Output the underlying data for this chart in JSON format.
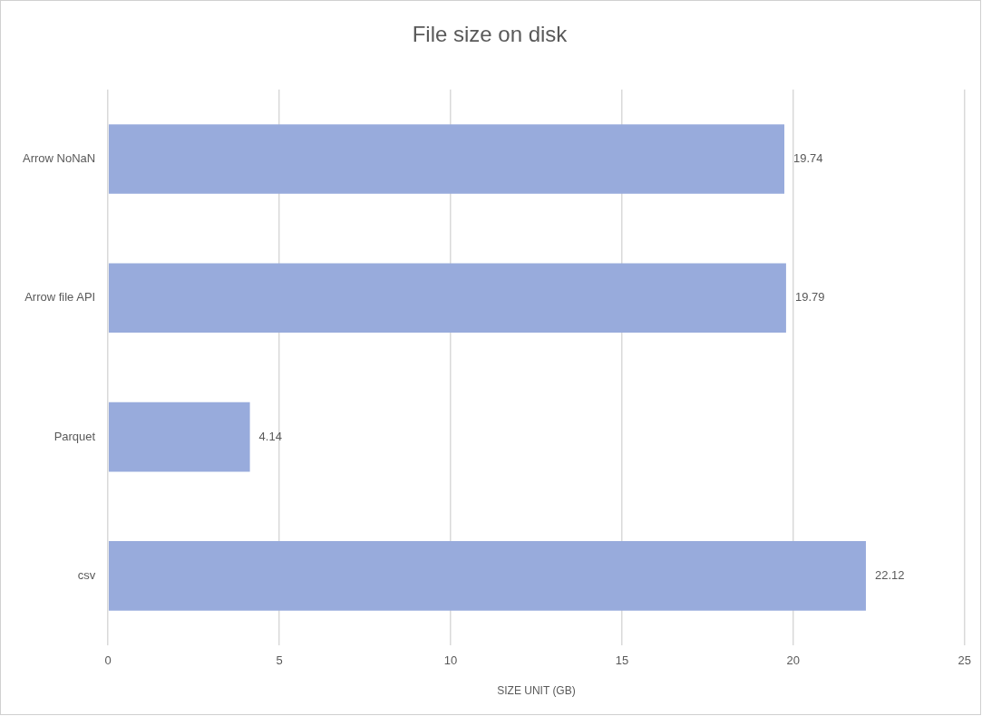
{
  "chart_data": {
    "type": "bar",
    "orientation": "horizontal",
    "title": "File size on disk",
    "xlabel": "SIZE UNIT (GB)",
    "categories": [
      "Arrow NoNaN",
      "Arrow file API",
      "Parquet",
      "csv"
    ],
    "values": [
      19.74,
      19.79,
      4.14,
      22.12
    ],
    "color": "#98abdc",
    "xlim": [
      0,
      25
    ],
    "xticks": [
      0,
      5,
      10,
      15,
      20,
      25
    ],
    "grid": "x",
    "legend": false,
    "data_labels": true
  }
}
